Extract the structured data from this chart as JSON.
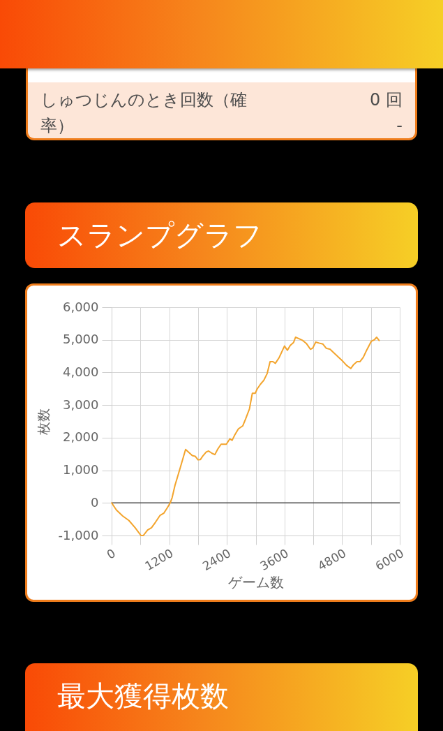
{
  "chart_data": {
    "type": "line",
    "title": "スランプグラフ",
    "xlabel": "ゲーム数",
    "ylabel": "枚数",
    "annotations": [
      "しゅつじんのとき回数（確率）",
      "0 回",
      "-",
      "最大獲得枚数"
    ],
    "x": [
      0,
      100,
      230,
      360,
      490,
      610,
      660,
      750,
      830,
      910,
      1010,
      1090,
      1160,
      1220,
      1260,
      1320,
      1430,
      1540,
      1600,
      1680,
      1740,
      1800,
      1850,
      1890,
      1970,
      2020,
      2090,
      2150,
      2210,
      2280,
      2390,
      2460,
      2510,
      2560,
      2640,
      2730,
      2790,
      2870,
      2930,
      2990,
      3030,
      3100,
      3170,
      3240,
      3300,
      3360,
      3410,
      3490,
      3600,
      3660,
      3720,
      3790,
      3830,
      3910,
      3980,
      4060,
      4140,
      4190,
      4250,
      4320,
      4400,
      4470,
      4550,
      4630,
      4730,
      4810,
      4890,
      4980,
      5040,
      5110,
      5170,
      5240,
      5310,
      5410,
      5470,
      5520,
      5570
    ],
    "series": [
      {
        "color": "#f3a42c",
        "values": [
          0,
          -220,
          -400,
          -540,
          -760,
          -1000,
          -1000,
          -830,
          -760,
          -600,
          -380,
          -310,
          -150,
          0,
          160,
          540,
          1080,
          1640,
          1560,
          1450,
          1430,
          1320,
          1330,
          1420,
          1560,
          1590,
          1520,
          1480,
          1650,
          1800,
          1800,
          1960,
          1920,
          2070,
          2270,
          2360,
          2570,
          2880,
          3360,
          3360,
          3490,
          3640,
          3760,
          3970,
          4330,
          4330,
          4280,
          4460,
          4810,
          4680,
          4830,
          4920,
          5080,
          5030,
          4980,
          4880,
          4710,
          4750,
          4930,
          4900,
          4870,
          4740,
          4710,
          4600,
          4460,
          4350,
          4220,
          4120,
          4240,
          4330,
          4330,
          4460,
          4680,
          4960,
          5000,
          5080,
          4980
        ]
      }
    ],
    "xlim": [
      0,
      6000
    ],
    "xticks": [
      0,
      {
        "value": 600,
        "label": null
      },
      1200,
      {
        "value": 1800,
        "label": null
      },
      2400,
      {
        "value": 3000,
        "label": null
      },
      3600,
      {
        "value": 4200,
        "label": null
      },
      4800,
      {
        "value": 5400,
        "label": null
      },
      6000
    ],
    "ylim": [
      -1000,
      6000
    ],
    "yticks": [
      {
        "value": -1000,
        "label": "-1,000"
      },
      0,
      {
        "value": 1000,
        "label": "1,000"
      },
      {
        "value": 2000,
        "label": "2,000"
      },
      {
        "value": 3000,
        "label": "3,000"
      },
      {
        "value": 4000,
        "label": "4,000"
      },
      {
        "value": 5000,
        "label": "5,000"
      },
      {
        "value": 6000,
        "label": "6,000"
      }
    ],
    "grid": true,
    "ref_lines": [
      {
        "axis": "y",
        "value": 0,
        "color": "#4a4a4a"
      }
    ]
  }
}
